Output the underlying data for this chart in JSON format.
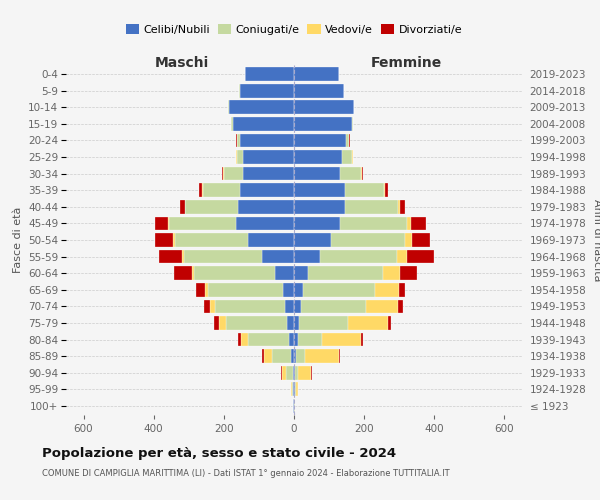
{
  "age_groups": [
    "0-4",
    "5-9",
    "10-14",
    "15-19",
    "20-24",
    "25-29",
    "30-34",
    "35-39",
    "40-44",
    "45-49",
    "50-54",
    "55-59",
    "60-64",
    "65-69",
    "70-74",
    "75-79",
    "80-84",
    "85-89",
    "90-94",
    "95-99",
    "100+"
  ],
  "birth_years": [
    "2019-2023",
    "2014-2018",
    "2009-2013",
    "2004-2008",
    "1999-2003",
    "1994-1998",
    "1989-1993",
    "1984-1988",
    "1979-1983",
    "1974-1978",
    "1969-1973",
    "1964-1968",
    "1959-1963",
    "1954-1958",
    "1949-1953",
    "1944-1948",
    "1939-1943",
    "1934-1938",
    "1929-1933",
    "1924-1928",
    "≤ 1923"
  ],
  "males": {
    "celibi": [
      140,
      155,
      185,
      175,
      155,
      145,
      145,
      155,
      160,
      165,
      130,
      90,
      55,
      30,
      25,
      20,
      15,
      8,
      4,
      3,
      2
    ],
    "coniugati": [
      0,
      1,
      2,
      4,
      8,
      18,
      55,
      105,
      150,
      190,
      210,
      225,
      230,
      215,
      200,
      175,
      115,
      55,
      18,
      4,
      1
    ],
    "vedovi": [
      0,
      0,
      0,
      0,
      0,
      1,
      1,
      2,
      2,
      3,
      4,
      5,
      7,
      9,
      14,
      18,
      22,
      22,
      12,
      2,
      1
    ],
    "divorziati": [
      0,
      0,
      0,
      0,
      1,
      2,
      3,
      8,
      12,
      38,
      52,
      65,
      50,
      25,
      18,
      14,
      8,
      5,
      2,
      0,
      0
    ]
  },
  "females": {
    "nubili": [
      128,
      142,
      170,
      165,
      148,
      138,
      130,
      145,
      145,
      130,
      105,
      75,
      40,
      25,
      20,
      15,
      10,
      7,
      4,
      3,
      1
    ],
    "coniugate": [
      0,
      1,
      2,
      4,
      10,
      28,
      62,
      112,
      152,
      192,
      212,
      218,
      215,
      205,
      185,
      140,
      70,
      25,
      6,
      2,
      1
    ],
    "vedove": [
      0,
      0,
      0,
      0,
      0,
      1,
      1,
      3,
      6,
      12,
      20,
      28,
      47,
      68,
      92,
      112,
      110,
      95,
      38,
      5,
      2
    ],
    "divorziate": [
      0,
      0,
      0,
      0,
      1,
      2,
      3,
      7,
      14,
      42,
      52,
      78,
      48,
      18,
      14,
      9,
      7,
      4,
      2,
      0,
      0
    ]
  },
  "color_celibi": "#4472c4",
  "color_coniugati": "#c5d9a0",
  "color_vedovi": "#ffd966",
  "color_divorziati": "#c00000",
  "title": "Popolazione per età, sesso e stato civile - 2024",
  "subtitle": "COMUNE DI CAMPIGLIA MARITTIMA (LI) - Dati ISTAT 1° gennaio 2024 - Elaborazione TUTTITALIA.IT",
  "label_maschi": "Maschi",
  "label_femmine": "Femmine",
  "ylabel_left": "Fasce di età",
  "ylabel_right": "Anni di nascita",
  "legend_labels": [
    "Celibi/Nubili",
    "Coniugati/e",
    "Vedovi/e",
    "Divorziati/e"
  ],
  "xlim": 650,
  "bg_color": "#f5f5f5",
  "grid_color": "#cccccc"
}
